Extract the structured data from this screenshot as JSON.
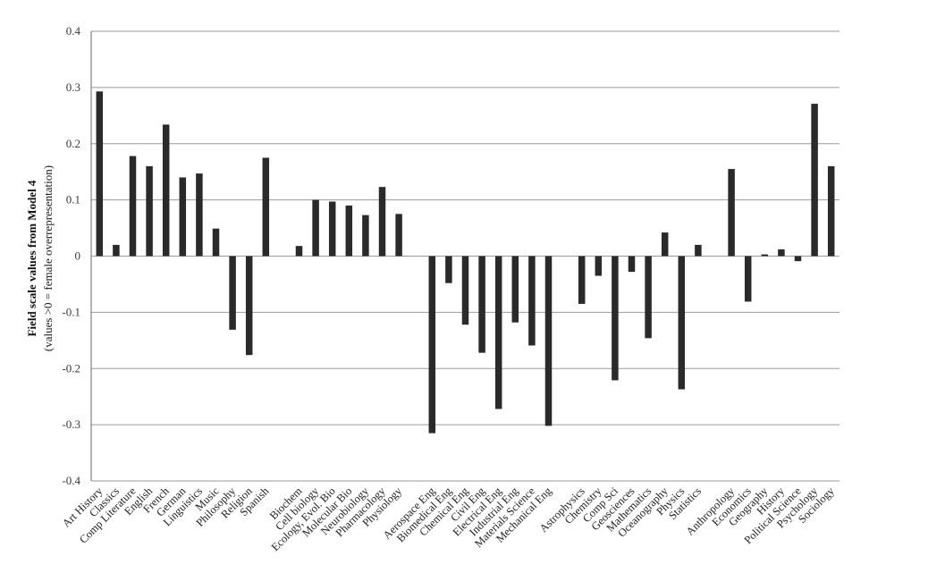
{
  "chart_data": {
    "type": "bar",
    "title": "",
    "ylabel": "Field scale values from Model 4",
    "ylabel_sub": "(values >0 = female overrepresentation)",
    "xlabel": "",
    "ylim": [
      -0.4,
      0.4
    ],
    "yticks": [
      -0.4,
      -0.3,
      -0.2,
      -0.1,
      0,
      0.1,
      0.2,
      0.3,
      0.4
    ],
    "ytick_labels": [
      "-0.4",
      "-0.3",
      "-0.2",
      "-0.1",
      "0",
      "0.1",
      "0.2",
      "0.3",
      "0.4"
    ],
    "grid": true,
    "bar_color": "#2a2a2a",
    "categories": [
      "Art History",
      "Classics",
      "Comp Literature",
      "English",
      "French",
      "German",
      "Linguistics",
      "Music",
      "Philosophy",
      "Religion",
      "Spanish",
      "",
      "Biochem",
      "Cell biology",
      "Ecology, Evol. Bio",
      "Molecular Bio",
      "Neurobiology",
      "Pharmacology",
      "Physiology",
      "",
      "Aerospace Eng",
      "Biomedical Eng",
      "Chemical Eng",
      "Civil Eng",
      "Electrical Eng",
      "Industrial Eng",
      "Materials Science",
      "Mechanical Eng",
      "",
      "Astrophysics",
      "Chemistry",
      "Comp Sci",
      "Geosciences",
      "Mathematics",
      "Oceanography",
      "Physics",
      "Statistics",
      "",
      "Anthropology",
      "Economics",
      "Geography",
      "History",
      "Political Science",
      "Psychology",
      "Sociology"
    ],
    "values": [
      0.293,
      0.02,
      0.178,
      0.16,
      0.234,
      0.14,
      0.147,
      0.049,
      -0.131,
      -0.176,
      0.175,
      null,
      0.018,
      0.1,
      0.097,
      0.09,
      0.073,
      0.123,
      0.075,
      null,
      -0.315,
      -0.048,
      -0.122,
      -0.172,
      -0.272,
      -0.118,
      -0.159,
      -0.302,
      null,
      -0.085,
      -0.035,
      -0.221,
      -0.028,
      -0.146,
      0.042,
      -0.237,
      0.02,
      null,
      0.155,
      -0.081,
      0.003,
      0.012,
      -0.009,
      0.271,
      0.16
    ]
  }
}
